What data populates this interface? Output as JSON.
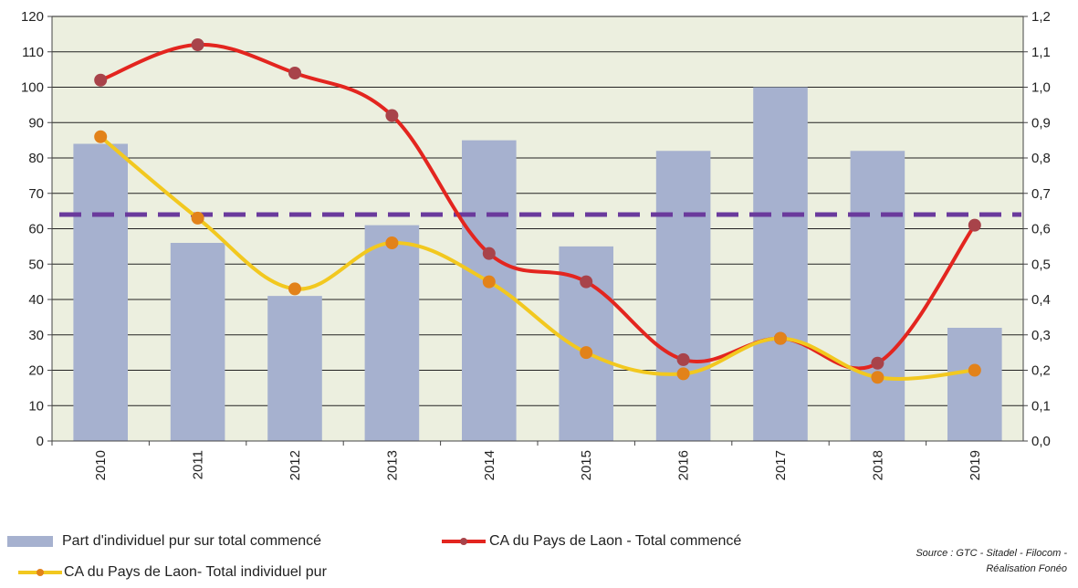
{
  "chart_data": {
    "type": "bar",
    "categories": [
      "2010",
      "2011",
      "2012",
      "2013",
      "2014",
      "2015",
      "2016",
      "2017",
      "2018",
      "2019"
    ],
    "series": [
      {
        "name": "Part d'individuel pur sur total commencé",
        "type": "bar",
        "axis": "left",
        "color": "#a6b1cf",
        "values": [
          84,
          56,
          41,
          61,
          85,
          55,
          82,
          100,
          82,
          32
        ]
      },
      {
        "name": "CA du Pays de Laon - Total commencé",
        "type": "line",
        "axis": "right",
        "color": "#e3251f",
        "marker_color": "#a8434a",
        "values": [
          1.02,
          1.12,
          1.04,
          0.92,
          0.53,
          0.45,
          0.23,
          0.29,
          0.22,
          0.61
        ]
      },
      {
        "name": "CA du Pays de Laon- Total individuel pur",
        "type": "line",
        "axis": "right",
        "color": "#f2c81f",
        "marker_color": "#e2821a",
        "values": [
          0.86,
          0.63,
          0.43,
          0.56,
          0.45,
          0.25,
          0.19,
          0.29,
          0.18,
          0.2
        ]
      }
    ],
    "reference_line": {
      "value": 64,
      "axis": "left",
      "style": "dashed",
      "color": "#6a3a9c"
    },
    "y_left": {
      "ylim": [
        0,
        120
      ],
      "ticks": [
        "0",
        "10",
        "20",
        "30",
        "40",
        "50",
        "60",
        "70",
        "80",
        "90",
        "100",
        "110",
        "120"
      ]
    },
    "y_right": {
      "ylim": [
        0,
        1.2
      ],
      "ticks": [
        "0,0",
        "0,1",
        "0,2",
        "0,3",
        "0,4",
        "0,5",
        "0,6",
        "0,7",
        "0,8",
        "0,9",
        "1,0",
        "1,1",
        "1,2"
      ]
    },
    "plot_background": "#ecefdf",
    "grid": true,
    "legend_position": "bottom",
    "source": {
      "line1": "Source : GTC - Sitadel - Filocom -",
      "line2": "Réalisation Fonéo"
    }
  }
}
